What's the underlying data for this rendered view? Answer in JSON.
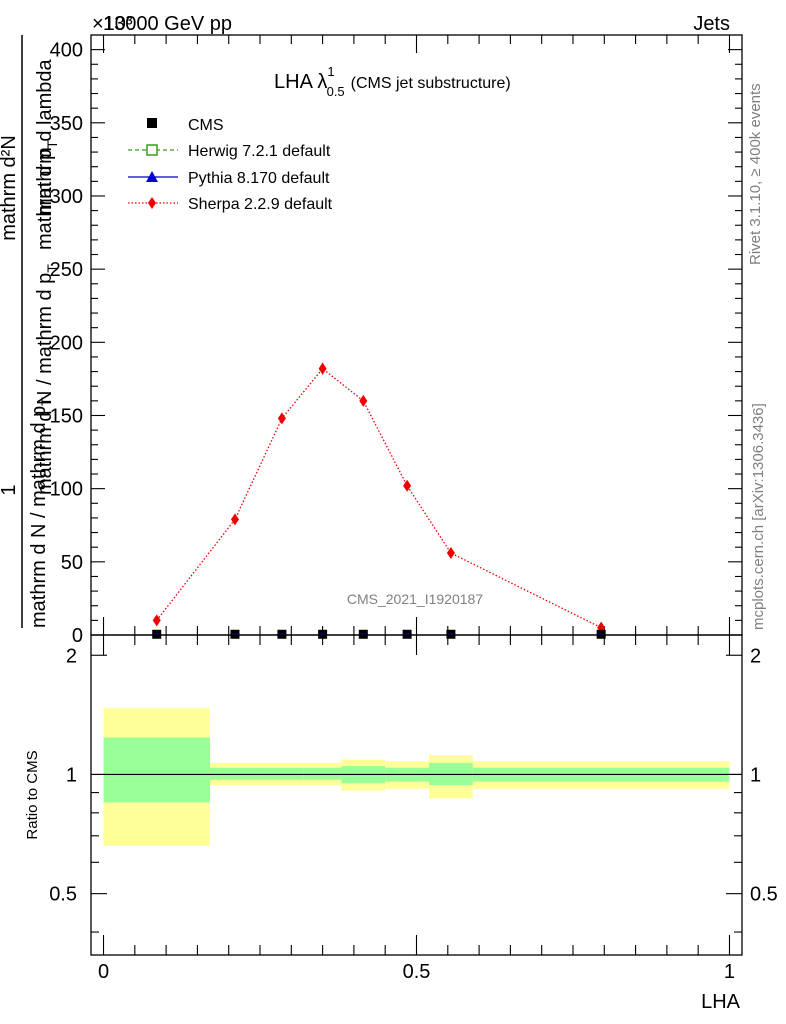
{
  "header": {
    "left": "13000 GeV pp",
    "right": "Jets",
    "scale_note": "×10³"
  },
  "side_labels": {
    "rivet": "Rivet 3.1.10, ≥ 400k events",
    "mcplots": "mcplots.cern.ch [arXiv:1306.3436]"
  },
  "chart_data": [
    {
      "type": "line",
      "title_main": "LHA λ",
      "title_sup": "1",
      "title_sub": "0.5",
      "title_suffix": "(CMS jet substructure)",
      "watermark": "CMS_2021_I1920187",
      "ylabel": {
        "numerator": "1",
        "line_a": "mathrm d N / mathrm d p",
        "sub_a": "T",
        "line_b": "mathrm d²N",
        "line_c": "mathrm d p",
        "sub_c": "T",
        "line_d": "mathrm d lambda",
        "denominator": "mathrm d N / mathrm d p",
        "sub_den": "T"
      },
      "xlim": [
        -0.02,
        1.02
      ],
      "ylim": [
        0,
        410
      ],
      "yticks": [
        0,
        50,
        100,
        150,
        200,
        250,
        300,
        350,
        400
      ],
      "ytick_labels": [
        "0",
        "50",
        "100",
        "150",
        "200",
        "250",
        "300",
        "350",
        "400"
      ],
      "legend": [
        {
          "name": "CMS",
          "marker": "square-filled",
          "color": "#000000"
        },
        {
          "name": "Herwig 7.2.1 default",
          "marker": "square-open",
          "color": "#3a9a1f"
        },
        {
          "name": "Pythia 8.170 default",
          "marker": "triangle",
          "color": "#0000cc"
        },
        {
          "name": "Sherpa 2.2.9 default",
          "marker": "diamond",
          "color": "#ee0000"
        }
      ],
      "bins": [
        [
          0.0,
          0.17
        ],
        [
          0.17,
          0.25
        ],
        [
          0.25,
          0.32
        ],
        [
          0.32,
          0.38
        ],
        [
          0.38,
          0.45
        ],
        [
          0.45,
          0.52
        ],
        [
          0.52,
          0.59
        ],
        [
          0.59,
          1.0
        ]
      ],
      "cms_points": {
        "x": [
          0.085,
          0.21,
          0.285,
          0.35,
          0.415,
          0.485,
          0.555,
          0.795
        ],
        "y": [
          0.5,
          0.5,
          0.5,
          0.5,
          0.5,
          0.5,
          0.5,
          0.5
        ]
      },
      "series": [
        {
          "name": "Sherpa 2.2.9 default",
          "color": "#ee0000",
          "x": [
            0.085,
            0.21,
            0.285,
            0.35,
            0.415,
            0.485,
            0.555,
            0.795
          ],
          "y": [
            10,
            79,
            148,
            182,
            160,
            102,
            56,
            5
          ],
          "err": [
            2,
            2,
            3,
            4,
            3,
            2,
            1.5,
            1
          ]
        }
      ]
    },
    {
      "type": "area",
      "ylabel": "Ratio to CMS",
      "xlabel": "LHA",
      "xlim": [
        -0.02,
        1.02
      ],
      "ylim": [
        0.35,
        2.25
      ],
      "yticks": [
        0.5,
        1,
        2
      ],
      "ytick_labels": [
        "0.5",
        "1",
        "2"
      ],
      "xticks": [
        0,
        0.5,
        1
      ],
      "xtick_labels": [
        "0",
        "0.5",
        "1"
      ],
      "reference_line": 1.0,
      "bins": [
        [
          0.0,
          0.17
        ],
        [
          0.17,
          0.25
        ],
        [
          0.25,
          0.32
        ],
        [
          0.32,
          0.38
        ],
        [
          0.38,
          0.45
        ],
        [
          0.45,
          0.52
        ],
        [
          0.52,
          0.59
        ],
        [
          0.59,
          1.0
        ]
      ],
      "band_outer": {
        "lo": [
          0.66,
          0.94,
          0.94,
          0.94,
          0.91,
          0.92,
          0.87,
          0.92
        ],
        "hi": [
          1.47,
          1.07,
          1.07,
          1.07,
          1.09,
          1.08,
          1.12,
          1.08
        ],
        "color": "#ffff99"
      },
      "band_inner": {
        "lo": [
          0.85,
          0.97,
          0.97,
          0.97,
          0.95,
          0.96,
          0.94,
          0.96
        ],
        "hi": [
          1.24,
          1.04,
          1.04,
          1.04,
          1.05,
          1.04,
          1.07,
          1.04
        ],
        "color": "#99ff99"
      }
    }
  ]
}
